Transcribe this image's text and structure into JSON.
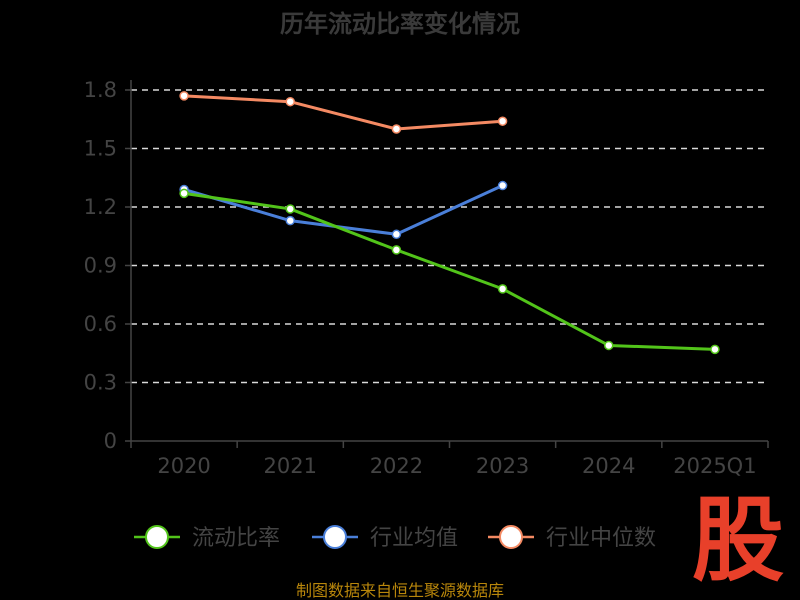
{
  "chart_data": {
    "type": "line",
    "title": "历年流动比率变化情况",
    "categories": [
      "2020",
      "2021",
      "2022",
      "2023",
      "2024",
      "2025Q1"
    ],
    "ylim": [
      0,
      1.8
    ],
    "yticks": [
      "0",
      "0.3",
      "0.6",
      "0.9",
      "1.2",
      "1.5",
      "1.8"
    ],
    "grid": true,
    "legend_position": "bottom",
    "series": [
      {
        "name": "流动比率",
        "color": "#52c41a",
        "values": [
          1.27,
          1.19,
          0.98,
          0.78,
          0.49,
          0.47
        ]
      },
      {
        "name": "行业均值",
        "color": "#4a7fd9",
        "values": [
          1.29,
          1.13,
          1.06,
          1.31,
          null,
          null
        ]
      },
      {
        "name": "行业中位数",
        "color": "#f48a63",
        "values": [
          1.77,
          1.74,
          1.6,
          1.64,
          null,
          null
        ]
      }
    ]
  },
  "source_text": "制图数据来自恒生聚源数据库",
  "logo_text": "股"
}
